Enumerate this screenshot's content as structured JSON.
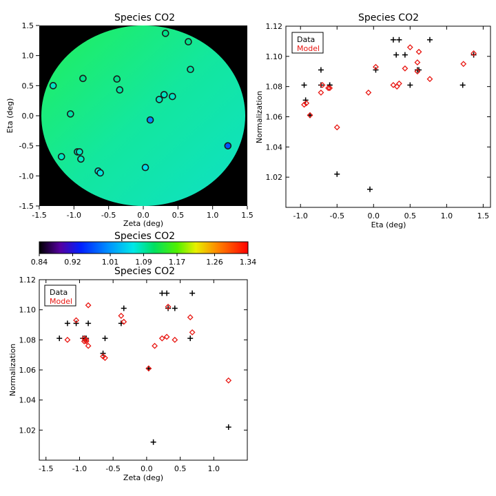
{
  "chart_data": [
    {
      "type": "scatter",
      "title": "Species CO2",
      "xlabel": "Zeta (deg)",
      "ylabel": "Eta (deg)",
      "xlim": [
        -1.5,
        1.5
      ],
      "ylim": [
        -1.5,
        1.5
      ],
      "xticks": [
        "-1.5",
        "-1.0",
        "-0.5",
        "0.0",
        "0.5",
        "1.0",
        "1.5"
      ],
      "yticks": [
        "-1.5",
        "-1.0",
        "-0.5",
        "0.0",
        "0.5",
        "1.0",
        "1.5"
      ],
      "background": "field of view map, normalization ~1.09",
      "points": [
        {
          "zeta": -1.3,
          "eta": 0.5,
          "value": 1.08
        },
        {
          "zeta": -1.18,
          "eta": -0.68,
          "value": 1.08
        },
        {
          "zeta": -1.05,
          "eta": 0.03,
          "value": 1.09
        },
        {
          "zeta": -0.95,
          "eta": -0.6,
          "value": 1.08
        },
        {
          "zeta": -0.92,
          "eta": -0.6,
          "value": 1.08
        },
        {
          "zeta": -0.9,
          "eta": -0.72,
          "value": 1.08
        },
        {
          "zeta": -0.87,
          "eta": 0.62,
          "value": 1.1
        },
        {
          "zeta": -0.65,
          "eta": -0.92,
          "value": 1.07
        },
        {
          "zeta": -0.62,
          "eta": -0.95,
          "value": 1.07
        },
        {
          "zeta": -0.38,
          "eta": 0.61,
          "value": 1.1
        },
        {
          "zeta": -0.34,
          "eta": 0.43,
          "value": 1.09
        },
        {
          "zeta": 0.03,
          "eta": -0.86,
          "value": 1.06
        },
        {
          "zeta": 0.1,
          "eta": -0.07,
          "value": 1.0
        },
        {
          "zeta": 0.23,
          "eta": 0.27,
          "value": 1.08
        },
        {
          "zeta": 0.3,
          "eta": 0.35,
          "value": 1.08
        },
        {
          "zeta": 0.32,
          "eta": 1.37,
          "value": 1.1
        },
        {
          "zeta": 0.42,
          "eta": 0.32,
          "value": 1.08
        },
        {
          "zeta": 0.65,
          "eta": 1.23,
          "value": 1.1
        },
        {
          "zeta": 0.68,
          "eta": 0.77,
          "value": 1.09
        },
        {
          "zeta": 1.22,
          "eta": -0.5,
          "value": 0.97
        }
      ]
    },
    {
      "type": "colorbar",
      "title": "Species CO2",
      "ticks": [
        "0.84",
        "0.92",
        "1.01",
        "1.09",
        "1.17",
        "1.26",
        "1.34"
      ],
      "range": [
        0.84,
        1.34
      ]
    },
    {
      "type": "scatter",
      "title": "Species CO2",
      "xlabel": "Eta (deg)",
      "ylabel": "Normalization",
      "xlim": [
        -1.2,
        1.6
      ],
      "ylim": [
        1.0,
        1.12
      ],
      "xticks": [
        "-1.0",
        "-0.5",
        "0.0",
        "0.5",
        "1.0",
        "1.5"
      ],
      "yticks": [
        "1.02",
        "1.04",
        "1.06",
        "1.08",
        "1.10",
        "1.12"
      ],
      "legend": {
        "position": "top-left",
        "entries": [
          "Data",
          "Model"
        ]
      },
      "series": [
        {
          "name": "Data",
          "marker": "plus",
          "color": "#000000",
          "x": [
            -0.95,
            -0.93,
            -0.87,
            -0.72,
            -0.72,
            -0.6,
            -0.6,
            -0.5,
            -0.05,
            0.03,
            0.27,
            0.31,
            0.35,
            0.43,
            0.5,
            0.6,
            0.62,
            0.77,
            1.22,
            1.37
          ],
          "y": [
            1.081,
            1.071,
            1.061,
            1.091,
            1.081,
            1.081,
            1.081,
            1.022,
            1.012,
            1.091,
            1.111,
            1.101,
            1.111,
            1.101,
            1.081,
            1.091,
            1.091,
            1.111,
            1.081,
            1.101
          ]
        },
        {
          "name": "Model",
          "marker": "diamond",
          "color": "#e8140f",
          "x": [
            -0.95,
            -0.92,
            -0.87,
            -0.72,
            -0.7,
            -0.62,
            -0.6,
            -0.5,
            -0.07,
            0.03,
            0.27,
            0.32,
            0.35,
            0.43,
            0.5,
            0.6,
            0.6,
            0.62,
            0.77,
            1.23,
            1.37
          ],
          "y": [
            1.068,
            1.069,
            1.061,
            1.076,
            1.081,
            1.079,
            1.079,
            1.053,
            1.076,
            1.093,
            1.081,
            1.08,
            1.082,
            1.092,
            1.106,
            1.096,
            1.09,
            1.103,
            1.085,
            1.095,
            1.102
          ]
        }
      ]
    },
    {
      "type": "scatter",
      "title": "Species CO2",
      "xlabel": "Zeta (deg)",
      "ylabel": "Normalization",
      "xlim": [
        -1.6,
        1.5
      ],
      "ylim": [
        1.0,
        1.12
      ],
      "xticks": [
        "-1.5",
        "-1.0",
        "-0.5",
        "0.0",
        "0.5",
        "1.0"
      ],
      "yticks": [
        "1.02",
        "1.04",
        "1.06",
        "1.08",
        "1.10",
        "1.12"
      ],
      "legend": {
        "position": "top-left",
        "entries": [
          "Data",
          "Model"
        ]
      },
      "series": [
        {
          "name": "Data",
          "marker": "plus",
          "color": "#000000",
          "x": [
            -1.3,
            -1.18,
            -1.05,
            -0.95,
            -0.92,
            -0.9,
            -0.87,
            -0.65,
            -0.62,
            -0.38,
            -0.34,
            0.03,
            0.1,
            0.23,
            0.3,
            0.32,
            0.42,
            0.65,
            0.68,
            1.22
          ],
          "y": [
            1.081,
            1.091,
            1.091,
            1.081,
            1.081,
            1.081,
            1.091,
            1.071,
            1.081,
            1.091,
            1.101,
            1.061,
            1.012,
            1.111,
            1.111,
            1.101,
            1.101,
            1.081,
            1.111,
            1.022
          ]
        },
        {
          "name": "Model",
          "marker": "diamond",
          "color": "#e8140f",
          "x": [
            -1.18,
            -1.05,
            -0.93,
            -0.93,
            -0.9,
            -0.9,
            -0.87,
            -0.87,
            -0.65,
            -0.62,
            -0.38,
            -0.34,
            0.03,
            0.12,
            0.23,
            0.3,
            0.32,
            0.42,
            0.65,
            0.68,
            1.22
          ],
          "y": [
            1.08,
            1.093,
            1.079,
            1.081,
            1.08,
            1.079,
            1.076,
            1.103,
            1.069,
            1.068,
            1.096,
            1.092,
            1.061,
            1.076,
            1.081,
            1.082,
            1.102,
            1.08,
            1.095,
            1.085,
            1.053
          ]
        }
      ]
    }
  ]
}
